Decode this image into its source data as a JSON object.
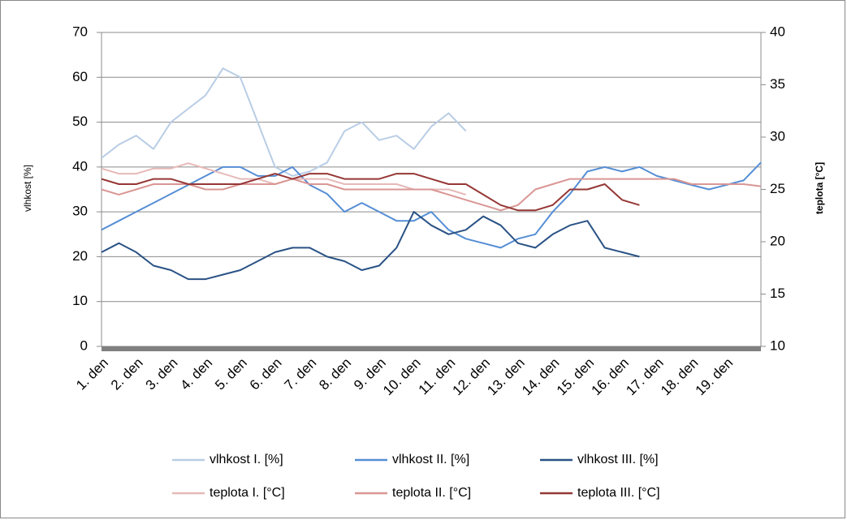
{
  "chart_data": {
    "type": "line",
    "ylabel": "vlhkost [%]",
    "y2label": "teplota [°C]",
    "categories": [
      "1. den",
      null,
      "2. den",
      null,
      "3. den",
      null,
      "4. den",
      null,
      "5. den",
      null,
      "6. den",
      null,
      "7. den",
      null,
      "8. den",
      null,
      "9. den",
      null,
      "10. den",
      null,
      "11. den",
      null,
      "12. den",
      null,
      "13. den",
      null,
      "14. den",
      null,
      "15. den",
      null,
      "16. den",
      null,
      "17. den",
      null,
      "18. den",
      null,
      "19. den",
      null,
      null
    ],
    "ylim": [
      0,
      70
    ],
    "yticks": [
      0,
      10,
      20,
      30,
      40,
      50,
      60,
      70
    ],
    "y2lim": [
      10,
      40
    ],
    "y2ticks": [
      10,
      15,
      20,
      25,
      30,
      35,
      40
    ],
    "grid": true,
    "legend": "bottom",
    "series": [
      {
        "name": "vlhkost I. [%]",
        "color": "#b9cde5",
        "values": [
          42,
          45,
          47,
          44,
          50,
          53,
          56,
          62,
          60,
          50,
          40,
          38,
          39,
          41,
          48,
          50,
          46,
          47,
          44,
          49,
          52,
          48,
          null,
          null,
          null,
          null,
          null,
          null,
          null,
          null,
          null,
          null,
          null,
          null,
          null,
          null,
          null,
          null,
          null
        ]
      },
      {
        "name": "vlhkost II. [%]",
        "color": "#558ed5",
        "values": [
          26,
          28,
          30,
          32,
          34,
          36,
          38,
          40,
          40,
          38,
          38,
          40,
          36,
          34,
          30,
          32,
          30,
          28,
          28,
          30,
          26,
          24,
          23,
          22,
          24,
          25,
          30,
          34,
          39,
          40,
          39,
          40,
          38,
          37,
          36,
          35,
          36,
          37,
          41
        ]
      },
      {
        "name": "vlhkost III. [%]",
        "color": "#2a5285",
        "values": [
          21,
          23,
          21,
          18,
          17,
          15,
          15,
          16,
          17,
          19,
          21,
          22,
          22,
          20,
          19,
          17,
          18,
          22,
          30,
          27,
          25,
          26,
          29,
          27,
          23,
          22,
          25,
          27,
          28,
          22,
          21,
          20,
          null,
          null,
          null,
          null,
          null,
          null,
          null
        ]
      },
      {
        "name": "teplota I. [°C]",
        "color": "#e6b9b8",
        "axis": "y2",
        "values": [
          27,
          26.5,
          26.5,
          27,
          27,
          27.5,
          27,
          26.5,
          26,
          26,
          25.5,
          26,
          26,
          26,
          25.5,
          25.5,
          25.5,
          25.5,
          25,
          25,
          25,
          24.5,
          null,
          null,
          null,
          null,
          null,
          null,
          null,
          null,
          null,
          null,
          null,
          null,
          null,
          null,
          null,
          null,
          null
        ]
      },
      {
        "name": "teplota II. [°C]",
        "color": "#d99694",
        "axis": "y2",
        "values": [
          25,
          24.5,
          25,
          25.5,
          25.5,
          25.5,
          25,
          25,
          25.5,
          25.5,
          25.5,
          26,
          25.5,
          25.5,
          25,
          25,
          25,
          25,
          25,
          25,
          24.5,
          24,
          23.5,
          23,
          23.5,
          25,
          25.5,
          26,
          26,
          26,
          26,
          26,
          26,
          26,
          25.5,
          25.5,
          25.5,
          25.5,
          25.3
        ]
      },
      {
        "name": "teplota III. [°C]",
        "color": "#953735",
        "axis": "y2",
        "values": [
          26,
          25.5,
          25.5,
          26,
          26,
          25.5,
          25.5,
          25.5,
          25.5,
          26,
          26.5,
          26,
          26.5,
          26.5,
          26,
          26,
          26,
          26.5,
          26.5,
          26,
          25.5,
          25.5,
          24.5,
          23.5,
          23,
          23,
          23.5,
          25,
          25,
          25.5,
          24,
          23.5,
          null,
          null,
          null,
          null,
          null,
          null,
          null
        ]
      }
    ]
  }
}
